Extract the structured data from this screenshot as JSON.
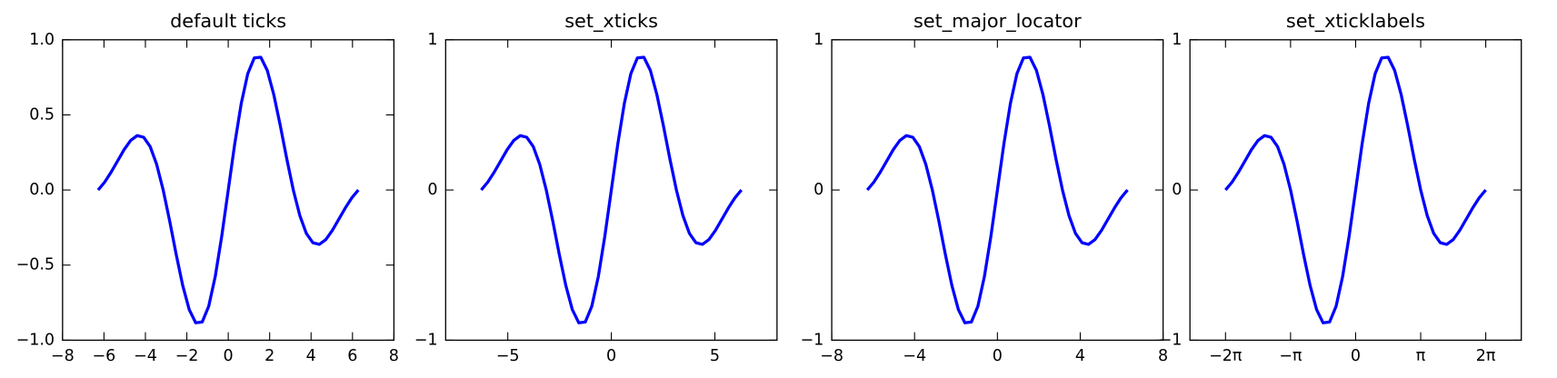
{
  "chart_data": [
    {
      "type": "line",
      "title": "default ticks",
      "x": [
        -6.283,
        -5.969,
        -5.655,
        -5.341,
        -5.027,
        -4.712,
        -4.398,
        -4.084,
        -3.77,
        -3.456,
        -3.142,
        -2.827,
        -2.513,
        -2.199,
        -1.885,
        -1.571,
        -1.257,
        -0.942,
        -0.628,
        -0.314,
        0,
        0.314,
        0.628,
        0.942,
        1.257,
        1.571,
        1.885,
        2.199,
        2.513,
        2.827,
        3.142,
        3.456,
        3.77,
        4.084,
        4.398,
        4.712,
        5.027,
        5.341,
        5.655,
        5.969,
        6.283
      ],
      "series": [
        {
          "color": "#0000ff",
          "values": [
            0,
            0.052,
            0.119,
            0.194,
            0.269,
            0.33,
            0.362,
            0.351,
            0.289,
            0.17,
            0,
            -0.207,
            -0.429,
            -0.635,
            -0.796,
            -0.884,
            -0.879,
            -0.774,
            -0.576,
            -0.308,
            0,
            0.308,
            0.576,
            0.774,
            0.879,
            0.884,
            0.796,
            0.635,
            0.429,
            0.207,
            0,
            -0.17,
            -0.289,
            -0.351,
            -0.362,
            -0.33,
            -0.269,
            -0.194,
            -0.119,
            -0.052,
            0
          ]
        }
      ],
      "xlim": [
        -8,
        8
      ],
      "ylim": [
        -1,
        1
      ],
      "xticks": [
        {
          "value": -8,
          "label": "−8"
        },
        {
          "value": -6,
          "label": "−6"
        },
        {
          "value": -4,
          "label": "−4"
        },
        {
          "value": -2,
          "label": "−2"
        },
        0,
        2,
        4,
        6,
        8
      ],
      "yticks": [
        {
          "value": -1,
          "label": "−1.0"
        },
        {
          "value": -0.5,
          "label": "−0.5"
        },
        {
          "value": 0,
          "label": "0.0"
        },
        0.5,
        {
          "value": 1,
          "label": "1.0"
        }
      ]
    },
    {
      "type": "line",
      "title": "set_xticks",
      "x": [
        -6.283,
        -5.969,
        -5.655,
        -5.341,
        -5.027,
        -4.712,
        -4.398,
        -4.084,
        -3.77,
        -3.456,
        -3.142,
        -2.827,
        -2.513,
        -2.199,
        -1.885,
        -1.571,
        -1.257,
        -0.942,
        -0.628,
        -0.314,
        0,
        0.314,
        0.628,
        0.942,
        1.257,
        1.571,
        1.885,
        2.199,
        2.513,
        2.827,
        3.142,
        3.456,
        3.77,
        4.084,
        4.398,
        4.712,
        5.027,
        5.341,
        5.655,
        5.969,
        6.283
      ],
      "series": [
        {
          "color": "#0000ff",
          "values": [
            0,
            0.052,
            0.119,
            0.194,
            0.269,
            0.33,
            0.362,
            0.351,
            0.289,
            0.17,
            0,
            -0.207,
            -0.429,
            -0.635,
            -0.796,
            -0.884,
            -0.879,
            -0.774,
            -0.576,
            -0.308,
            0,
            0.308,
            0.576,
            0.774,
            0.879,
            0.884,
            0.796,
            0.635,
            0.429,
            0.207,
            0,
            -0.17,
            -0.289,
            -0.351,
            -0.362,
            -0.33,
            -0.269,
            -0.194,
            -0.119,
            -0.052,
            0
          ]
        }
      ],
      "xlim": [
        -8,
        8
      ],
      "ylim": [
        -1,
        1
      ],
      "xticks": [
        {
          "value": -5,
          "label": "−5"
        },
        0,
        5
      ],
      "yticks": [
        {
          "value": -1,
          "label": "−1"
        },
        0,
        1
      ]
    },
    {
      "type": "line",
      "title": "set_major_locator",
      "x": [
        -6.283,
        -5.969,
        -5.655,
        -5.341,
        -5.027,
        -4.712,
        -4.398,
        -4.084,
        -3.77,
        -3.456,
        -3.142,
        -2.827,
        -2.513,
        -2.199,
        -1.885,
        -1.571,
        -1.257,
        -0.942,
        -0.628,
        -0.314,
        0,
        0.314,
        0.628,
        0.942,
        1.257,
        1.571,
        1.885,
        2.199,
        2.513,
        2.827,
        3.142,
        3.456,
        3.77,
        4.084,
        4.398,
        4.712,
        5.027,
        5.341,
        5.655,
        5.969,
        6.283
      ],
      "series": [
        {
          "color": "#0000ff",
          "values": [
            0,
            0.052,
            0.119,
            0.194,
            0.269,
            0.33,
            0.362,
            0.351,
            0.289,
            0.17,
            0,
            -0.207,
            -0.429,
            -0.635,
            -0.796,
            -0.884,
            -0.879,
            -0.774,
            -0.576,
            -0.308,
            0,
            0.308,
            0.576,
            0.774,
            0.879,
            0.884,
            0.796,
            0.635,
            0.429,
            0.207,
            0,
            -0.17,
            -0.289,
            -0.351,
            -0.362,
            -0.33,
            -0.269,
            -0.194,
            -0.119,
            -0.052,
            0
          ]
        }
      ],
      "xlim": [
        -8,
        8
      ],
      "ylim": [
        -1,
        1
      ],
      "xticks": [
        {
          "value": -8,
          "label": "−8"
        },
        {
          "value": -4,
          "label": "−4"
        },
        0,
        4,
        8
      ],
      "yticks": [
        {
          "value": -1,
          "label": "−1"
        },
        0,
        1
      ]
    },
    {
      "type": "line",
      "title": "set_xticklabels",
      "x": [
        -6.283,
        -5.969,
        -5.655,
        -5.341,
        -5.027,
        -4.712,
        -4.398,
        -4.084,
        -3.77,
        -3.456,
        -3.142,
        -2.827,
        -2.513,
        -2.199,
        -1.885,
        -1.571,
        -1.257,
        -0.942,
        -0.628,
        -0.314,
        0,
        0.314,
        0.628,
        0.942,
        1.257,
        1.571,
        1.885,
        2.199,
        2.513,
        2.827,
        3.142,
        3.456,
        3.77,
        4.084,
        4.398,
        4.712,
        5.027,
        5.341,
        5.655,
        5.969,
        6.283
      ],
      "series": [
        {
          "color": "#0000ff",
          "values": [
            0,
            0.052,
            0.119,
            0.194,
            0.269,
            0.33,
            0.362,
            0.351,
            0.289,
            0.17,
            0,
            -0.207,
            -0.429,
            -0.635,
            -0.796,
            -0.884,
            -0.879,
            -0.774,
            -0.576,
            -0.308,
            0,
            0.308,
            0.576,
            0.774,
            0.879,
            0.884,
            0.796,
            0.635,
            0.429,
            0.207,
            0,
            -0.17,
            -0.289,
            -0.351,
            -0.362,
            -0.33,
            -0.269,
            -0.194,
            -0.119,
            -0.052,
            0
          ]
        }
      ],
      "xlim": [
        -8,
        8
      ],
      "ylim": [
        -1,
        1
      ],
      "xticks": [
        {
          "value": -6.283,
          "label": "−2π"
        },
        {
          "value": -3.142,
          "label": "−π"
        },
        0,
        {
          "value": 3.142,
          "label": "π"
        },
        {
          "value": 6.283,
          "label": "2π"
        }
      ],
      "yticks": [
        {
          "value": -1,
          "label": "−1"
        },
        0,
        1
      ]
    }
  ]
}
